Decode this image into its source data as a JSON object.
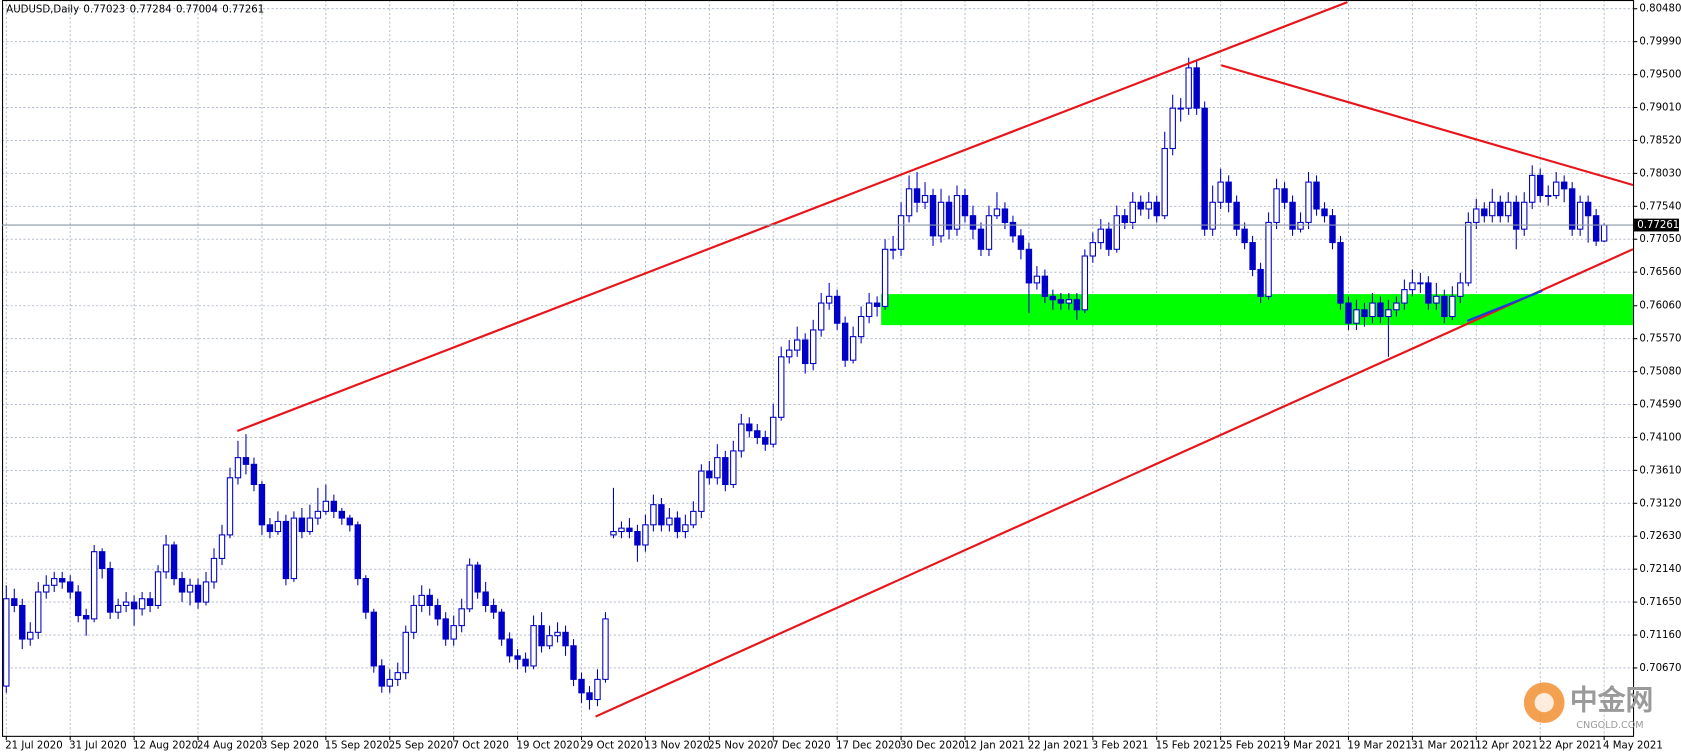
{
  "chart_data": {
    "type": "candlestick",
    "title": "AUDUSD,Daily",
    "color": "#0000c8",
    "grid": true,
    "categories": [
      "21 Jul 2020",
      null,
      null,
      null,
      null,
      null,
      null,
      null,
      "31 Jul 2020",
      null,
      null,
      null,
      null,
      null,
      null,
      null,
      "12 Aug 2020",
      null,
      null,
      null,
      null,
      null,
      null,
      null,
      "24 Aug 2020",
      null,
      null,
      null,
      null,
      null,
      null,
      null,
      "3 Sep 2020",
      null,
      null,
      null,
      null,
      null,
      null,
      null,
      "15 Sep 2020",
      null,
      null,
      null,
      null,
      null,
      null,
      null,
      "25 Sep 2020",
      null,
      null,
      null,
      null,
      null,
      null,
      null,
      "7 Oct 2020",
      null,
      null,
      null,
      null,
      null,
      null,
      null,
      "19 Oct 2020",
      null,
      null,
      null,
      null,
      null,
      null,
      null,
      "29 Oct 2020",
      null,
      null,
      null,
      null,
      null,
      null,
      null,
      "13 Nov 2020",
      null,
      null,
      null,
      null,
      null,
      null,
      null,
      "25 Nov 2020",
      null,
      null,
      null,
      null,
      null,
      null,
      null,
      "7 Dec 2020",
      null,
      null,
      null,
      null,
      null,
      null,
      null,
      "17 Dec 2020",
      null,
      null,
      null,
      null,
      null,
      null,
      null,
      "30 Dec 2020",
      null,
      null,
      null,
      null,
      null,
      null,
      null,
      "12 Jan 2021",
      null,
      null,
      null,
      null,
      null,
      null,
      null,
      "22 Jan 2021",
      null,
      null,
      null,
      null,
      null,
      null,
      null,
      "3 Feb 2021",
      null,
      null,
      null,
      null,
      null,
      null,
      null,
      "15 Feb 2021",
      null,
      null,
      null,
      null,
      null,
      null,
      null,
      "25 Feb 2021",
      null,
      null,
      null,
      null,
      null,
      null,
      null,
      "9 Mar 2021",
      null,
      null,
      null,
      null,
      null,
      null,
      null,
      "19 Mar 2021",
      null,
      null,
      null,
      null,
      null,
      null,
      null,
      "31 Mar 2021",
      null,
      null,
      null,
      null,
      null,
      null,
      null,
      "12 Apr 2021",
      null,
      null,
      null,
      null,
      null,
      null,
      null,
      "22 Apr 2021",
      null,
      null,
      null,
      null,
      null,
      null,
      null,
      "4 May 2021"
    ],
    "open": [
      0.704,
      0.717,
      0.716,
      0.711,
      0.712,
      0.718,
      0.719,
      0.72,
      0.7195,
      0.718,
      0.7145,
      0.714,
      0.724,
      0.7215,
      0.715,
      0.716,
      0.7165,
      0.7155,
      0.717,
      0.716,
      0.721,
      0.725,
      0.72,
      0.718,
      0.719,
      0.7165,
      0.7195,
      0.723,
      0.7265,
      0.735,
      0.738,
      0.737,
      0.734,
      0.728,
      0.727,
      0.7285,
      0.72,
      0.729,
      0.727,
      0.729,
      0.73,
      0.7315,
      0.73,
      0.729,
      0.728,
      0.72,
      0.715,
      0.707,
      0.704,
      0.705,
      0.706,
      0.712,
      0.716,
      0.7175,
      0.716,
      0.714,
      0.711,
      0.713,
      0.7155,
      0.722,
      0.718,
      0.716,
      0.715,
      0.711,
      0.7085,
      0.708,
      0.707,
      0.713,
      0.71,
      0.7115,
      0.712,
      0.71,
      0.705,
      0.703,
      0.702,
      0.705,
      0.7265,
      0.727,
      0.7275,
      0.727,
      0.725,
      0.728,
      0.731,
      0.728,
      0.729,
      0.727,
      0.728,
      0.73,
      0.736,
      0.735,
      0.738,
      0.734,
      0.739,
      0.743,
      0.742,
      0.741,
      0.74,
      0.744,
      0.753,
      0.754,
      0.7555,
      0.752,
      0.757,
      0.761,
      0.762,
      0.758,
      0.7525,
      0.756,
      0.759,
      0.761,
      0.7605,
      0.769,
      0.769,
      0.774,
      0.778,
      0.776,
      0.777,
      0.771,
      0.776,
      0.772,
      0.777,
      0.774,
      0.772,
      0.769,
      0.774,
      0.775,
      0.773,
      0.771,
      0.769,
      0.764,
      0.765,
      0.762,
      0.7615,
      0.761,
      0.7615,
      0.76,
      0.768,
      0.77,
      0.772,
      0.769,
      0.774,
      0.773,
      0.776,
      0.775,
      0.776,
      0.774,
      0.784,
      0.79,
      0.79,
      0.796,
      0.79,
      0.772,
      0.776,
      0.779,
      0.776,
      0.772,
      0.77,
      0.766,
      0.762,
      0.773,
      0.778,
      0.776,
      0.772,
      0.773,
      0.779,
      0.775,
      0.774,
      0.77,
      0.761,
      0.758,
      0.76,
      0.759,
      0.761,
      0.759,
      0.76,
      0.761,
      0.763,
      0.764,
      0.764,
      0.761,
      0.762,
      0.759,
      0.762,
      0.764,
      0.773,
      0.775,
      0.774,
      0.776,
      0.774,
      0.776,
      0.772,
      0.776,
      0.78,
      0.777,
      0.777,
      0.779,
      0.778,
      0.772,
      0.776,
      0.774,
      0.77023
    ],
    "high": [
      0.719,
      0.7185,
      0.717,
      0.7135,
      0.7195,
      0.7205,
      0.721,
      0.721,
      0.7205,
      0.719,
      0.7155,
      0.725,
      0.7245,
      0.7225,
      0.717,
      0.718,
      0.7175,
      0.718,
      0.718,
      0.722,
      0.7265,
      0.7255,
      0.721,
      0.72,
      0.72,
      0.721,
      0.7245,
      0.728,
      0.7365,
      0.7405,
      0.7415,
      0.738,
      0.7345,
      0.729,
      0.73,
      0.7295,
      0.73,
      0.7305,
      0.731,
      0.7335,
      0.734,
      0.7325,
      0.7305,
      0.7295,
      0.7285,
      0.7205,
      0.7155,
      0.708,
      0.7065,
      0.7075,
      0.713,
      0.7175,
      0.719,
      0.7185,
      0.717,
      0.715,
      0.7145,
      0.717,
      0.723,
      0.7225,
      0.7195,
      0.717,
      0.7155,
      0.712,
      0.7095,
      0.709,
      0.7145,
      0.715,
      0.713,
      0.7135,
      0.713,
      0.711,
      0.706,
      0.704,
      0.7065,
      0.715,
      0.7335,
      0.7285,
      0.729,
      0.728,
      0.7295,
      0.7325,
      0.732,
      0.7305,
      0.73,
      0.7295,
      0.7315,
      0.737,
      0.7375,
      0.74,
      0.739,
      0.7405,
      0.7445,
      0.744,
      0.743,
      0.742,
      0.746,
      0.7545,
      0.7555,
      0.7575,
      0.7565,
      0.7585,
      0.7625,
      0.764,
      0.763,
      0.759,
      0.7575,
      0.7605,
      0.7625,
      0.762,
      0.7705,
      0.771,
      0.776,
      0.78,
      0.7805,
      0.779,
      0.778,
      0.778,
      0.777,
      0.7785,
      0.778,
      0.7755,
      0.773,
      0.7755,
      0.7775,
      0.776,
      0.774,
      0.772,
      0.77,
      0.7665,
      0.766,
      0.763,
      0.7625,
      0.7625,
      0.7625,
      0.769,
      0.7715,
      0.7735,
      0.773,
      0.7755,
      0.775,
      0.7775,
      0.777,
      0.7775,
      0.777,
      0.7865,
      0.792,
      0.7915,
      0.7975,
      0.797,
      0.791,
      0.7785,
      0.781,
      0.78,
      0.777,
      0.773,
      0.771,
      0.767,
      0.7745,
      0.7795,
      0.779,
      0.777,
      0.7745,
      0.7805,
      0.78,
      0.776,
      0.775,
      0.771,
      0.762,
      0.7615,
      0.761,
      0.7625,
      0.762,
      0.7615,
      0.762,
      0.7645,
      0.766,
      0.7655,
      0.765,
      0.764,
      0.763,
      0.7635,
      0.7655,
      0.7745,
      0.7765,
      0.776,
      0.778,
      0.777,
      0.7775,
      0.777,
      0.7775,
      0.7815,
      0.781,
      0.7785,
      0.7805,
      0.78,
      0.779,
      0.777,
      0.777,
      0.775,
      0.77284
    ],
    "low": [
      0.703,
      0.715,
      0.7095,
      0.71,
      0.711,
      0.717,
      0.718,
      0.7185,
      0.717,
      0.7135,
      0.7115,
      0.7135,
      0.72,
      0.714,
      0.714,
      0.715,
      0.713,
      0.7145,
      0.715,
      0.7155,
      0.72,
      0.719,
      0.7165,
      0.716,
      0.7155,
      0.716,
      0.7185,
      0.722,
      0.726,
      0.734,
      0.7355,
      0.733,
      0.7265,
      0.726,
      0.7265,
      0.719,
      0.7195,
      0.726,
      0.7265,
      0.728,
      0.7295,
      0.729,
      0.728,
      0.727,
      0.719,
      0.714,
      0.706,
      0.703,
      0.703,
      0.704,
      0.705,
      0.711,
      0.715,
      0.7145,
      0.713,
      0.71,
      0.71,
      0.712,
      0.715,
      0.717,
      0.715,
      0.714,
      0.71,
      0.7075,
      0.7065,
      0.706,
      0.7065,
      0.709,
      0.7095,
      0.7105,
      0.7085,
      0.704,
      0.7015,
      0.7005,
      0.701,
      0.7045,
      0.726,
      0.726,
      0.726,
      0.7225,
      0.724,
      0.727,
      0.727,
      0.727,
      0.726,
      0.726,
      0.7275,
      0.729,
      0.734,
      0.734,
      0.733,
      0.7335,
      0.738,
      0.741,
      0.74,
      0.739,
      0.7395,
      0.7435,
      0.752,
      0.753,
      0.7505,
      0.751,
      0.756,
      0.76,
      0.757,
      0.7515,
      0.752,
      0.755,
      0.758,
      0.759,
      0.76,
      0.7675,
      0.768,
      0.773,
      0.7745,
      0.775,
      0.7695,
      0.77,
      0.7705,
      0.771,
      0.773,
      0.7705,
      0.768,
      0.768,
      0.7735,
      0.772,
      0.77,
      0.7675,
      0.7595,
      0.763,
      0.761,
      0.76,
      0.76,
      0.76,
      0.7585,
      0.7595,
      0.767,
      0.769,
      0.768,
      0.7685,
      0.772,
      0.772,
      0.774,
      0.7735,
      0.773,
      0.7735,
      0.783,
      0.788,
      0.789,
      0.789,
      0.771,
      0.771,
      0.775,
      0.7745,
      0.771,
      0.769,
      0.765,
      0.761,
      0.7615,
      0.772,
      0.775,
      0.771,
      0.7715,
      0.772,
      0.774,
      0.773,
      0.769,
      0.76,
      0.757,
      0.757,
      0.7575,
      0.758,
      0.758,
      0.753,
      0.759,
      0.76,
      0.762,
      0.7625,
      0.76,
      0.76,
      0.758,
      0.7585,
      0.761,
      0.7635,
      0.772,
      0.773,
      0.773,
      0.773,
      0.773,
      0.769,
      0.771,
      0.775,
      0.776,
      0.7755,
      0.7765,
      0.776,
      0.771,
      0.771,
      0.77,
      0.7695,
      0.77004
    ],
    "close": [
      0.717,
      0.716,
      0.711,
      0.712,
      0.718,
      0.719,
      0.72,
      0.7195,
      0.718,
      0.7145,
      0.714,
      0.724,
      0.7215,
      0.715,
      0.716,
      0.7165,
      0.7155,
      0.717,
      0.716,
      0.721,
      0.725,
      0.72,
      0.718,
      0.719,
      0.7165,
      0.7195,
      0.723,
      0.7265,
      0.735,
      0.738,
      0.737,
      0.734,
      0.728,
      0.727,
      0.7285,
      0.72,
      0.729,
      0.727,
      0.729,
      0.73,
      0.7315,
      0.73,
      0.729,
      0.728,
      0.72,
      0.715,
      0.707,
      0.704,
      0.705,
      0.706,
      0.712,
      0.716,
      0.7175,
      0.716,
      0.714,
      0.711,
      0.713,
      0.7155,
      0.722,
      0.718,
      0.716,
      0.715,
      0.711,
      0.7085,
      0.708,
      0.707,
      0.713,
      0.71,
      0.7115,
      0.712,
      0.71,
      0.705,
      0.703,
      0.702,
      0.705,
      0.714,
      0.727,
      0.7275,
      0.727,
      0.725,
      0.728,
      0.731,
      0.728,
      0.729,
      0.727,
      0.728,
      0.73,
      0.736,
      0.735,
      0.738,
      0.734,
      0.739,
      0.743,
      0.742,
      0.741,
      0.74,
      0.744,
      0.753,
      0.754,
      0.7555,
      0.752,
      0.757,
      0.761,
      0.762,
      0.758,
      0.7525,
      0.756,
      0.759,
      0.761,
      0.7605,
      0.769,
      0.769,
      0.774,
      0.778,
      0.776,
      0.777,
      0.771,
      0.776,
      0.772,
      0.777,
      0.774,
      0.772,
      0.769,
      0.774,
      0.775,
      0.773,
      0.771,
      0.769,
      0.764,
      0.765,
      0.762,
      0.7615,
      0.761,
      0.7615,
      0.76,
      0.768,
      0.77,
      0.772,
      0.769,
      0.774,
      0.773,
      0.776,
      0.775,
      0.776,
      0.774,
      0.784,
      0.79,
      0.79,
      0.796,
      0.79,
      0.772,
      0.776,
      0.779,
      0.776,
      0.772,
      0.77,
      0.766,
      0.762,
      0.773,
      0.778,
      0.776,
      0.772,
      0.773,
      0.779,
      0.775,
      0.774,
      0.77,
      0.761,
      0.758,
      0.76,
      0.759,
      0.761,
      0.759,
      0.76,
      0.761,
      0.763,
      0.764,
      0.764,
      0.761,
      0.762,
      0.759,
      0.762,
      0.764,
      0.773,
      0.775,
      0.774,
      0.776,
      0.774,
      0.776,
      0.772,
      0.776,
      0.78,
      0.777,
      0.777,
      0.779,
      0.778,
      0.772,
      0.776,
      0.774,
      0.77023,
      0.77261
    ],
    "ylim": [
      0.6966,
      0.8061
    ],
    "yticks": [
      {
        "value": 0.8048,
        "label": "0.80480"
      },
      {
        "value": 0.7999,
        "label": "0.79990"
      },
      {
        "value": 0.795,
        "label": "0.79500"
      },
      {
        "value": 0.7901,
        "label": "0.79010"
      },
      {
        "value": 0.7852,
        "label": "0.78520"
      },
      {
        "value": 0.7803,
        "label": "0.78030"
      },
      {
        "value": 0.7754,
        "label": "0.77540"
      },
      {
        "value": 0.7705,
        "label": "0.77050"
      },
      {
        "value": 0.7656,
        "label": "0.76560"
      },
      {
        "value": 0.7606,
        "label": "0.76060"
      },
      {
        "value": 0.7557,
        "label": "0.75570"
      },
      {
        "value": 0.7508,
        "label": "0.75080"
      },
      {
        "value": 0.7459,
        "label": "0.74590"
      },
      {
        "value": 0.741,
        "label": "0.74100"
      },
      {
        "value": 0.7361,
        "label": "0.73610"
      },
      {
        "value": 0.7312,
        "label": "0.73120"
      },
      {
        "value": 0.7263,
        "label": "0.72630"
      },
      {
        "value": 0.7214,
        "label": "0.72140"
      },
      {
        "value": 0.7165,
        "label": "0.71650"
      },
      {
        "value": 0.7116,
        "label": "0.71160"
      },
      {
        "value": 0.7067,
        "label": "0.70670"
      }
    ],
    "watermark": {
      "name": "中金网",
      "site": "CNGOLD.COM"
    }
  }
}
